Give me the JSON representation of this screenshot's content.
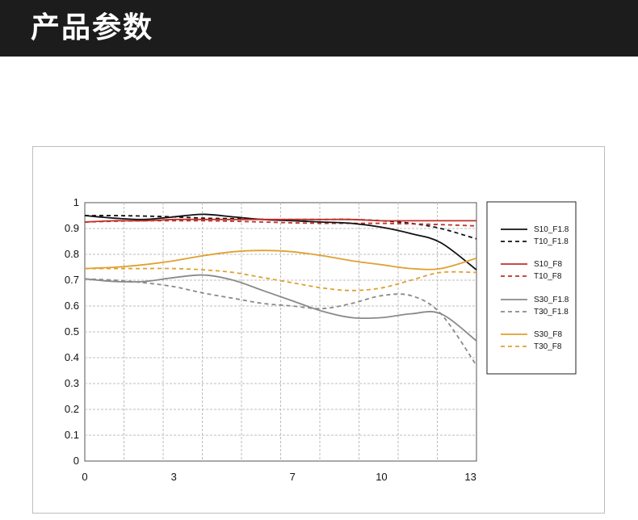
{
  "header": {
    "title": "产品参数"
  },
  "chart_data": {
    "type": "line",
    "title": "",
    "xlabel": "",
    "ylabel": "",
    "xlim": [
      0,
      13.2
    ],
    "ylim": [
      0,
      1
    ],
    "x_ticks": [
      0,
      3,
      7,
      10,
      13
    ],
    "y_ticks": [
      0,
      0.1,
      0.2,
      0.3,
      0.4,
      0.5,
      0.6,
      0.7,
      0.8,
      0.9,
      1
    ],
    "grid": true,
    "legend_position": "right",
    "series": [
      {
        "name": "S10_F1.8",
        "color": "#111111",
        "dashed": false,
        "x": [
          0,
          1,
          2,
          3,
          4,
          5,
          6,
          7,
          8,
          9,
          10,
          11,
          12,
          13.2
        ],
        "y": [
          0.95,
          0.94,
          0.935,
          0.945,
          0.955,
          0.945,
          0.935,
          0.93,
          0.925,
          0.92,
          0.905,
          0.88,
          0.845,
          0.74
        ]
      },
      {
        "name": "T10_F1.8",
        "color": "#111111",
        "dashed": true,
        "x": [
          0,
          1,
          2,
          3,
          4,
          5,
          6,
          7,
          8,
          9,
          10,
          11,
          12,
          13.2
        ],
        "y": [
          0.95,
          0.95,
          0.948,
          0.945,
          0.94,
          0.938,
          0.935,
          0.935,
          0.935,
          0.935,
          0.93,
          0.92,
          0.9,
          0.86
        ]
      },
      {
        "name": "S10_F8",
        "color": "#c0302b",
        "dashed": false,
        "x": [
          0,
          1,
          2,
          3,
          4,
          5,
          6,
          7,
          8,
          9,
          10,
          11,
          12,
          13.2
        ],
        "y": [
          0.925,
          0.93,
          0.93,
          0.935,
          0.935,
          0.935,
          0.935,
          0.935,
          0.935,
          0.935,
          0.93,
          0.93,
          0.93,
          0.93
        ]
      },
      {
        "name": "T10_F8",
        "color": "#c0302b",
        "dashed": true,
        "x": [
          0,
          1,
          2,
          3,
          4,
          5,
          6,
          7,
          8,
          9,
          10,
          11,
          12,
          13.2
        ],
        "y": [
          0.925,
          0.928,
          0.93,
          0.93,
          0.93,
          0.928,
          0.925,
          0.922,
          0.92,
          0.92,
          0.92,
          0.918,
          0.915,
          0.91
        ]
      },
      {
        "name": "S30_F1.8",
        "color": "#8a8a8a",
        "dashed": false,
        "x": [
          0,
          1,
          2,
          3,
          4,
          5,
          6,
          7,
          8,
          9,
          10,
          11,
          12,
          13.2
        ],
        "y": [
          0.705,
          0.695,
          0.695,
          0.71,
          0.72,
          0.7,
          0.66,
          0.62,
          0.58,
          0.555,
          0.555,
          0.57,
          0.57,
          0.465
        ]
      },
      {
        "name": "T30_F1.8",
        "color": "#8a8a8a",
        "dashed": true,
        "x": [
          0,
          1,
          2,
          3,
          4,
          5,
          6,
          7,
          8,
          9,
          10,
          11,
          12,
          13.2
        ],
        "y": [
          0.705,
          0.7,
          0.69,
          0.675,
          0.65,
          0.63,
          0.61,
          0.6,
          0.59,
          0.61,
          0.64,
          0.64,
          0.57,
          0.37
        ]
      },
      {
        "name": "S30_F8",
        "color": "#e0a030",
        "dashed": false,
        "x": [
          0,
          1,
          2,
          3,
          4,
          5,
          6,
          7,
          8,
          9,
          10,
          11,
          12,
          13.2
        ],
        "y": [
          0.745,
          0.75,
          0.76,
          0.775,
          0.795,
          0.81,
          0.815,
          0.81,
          0.795,
          0.775,
          0.76,
          0.745,
          0.745,
          0.785
        ]
      },
      {
        "name": "T30_F8",
        "color": "#e0a030",
        "dashed": true,
        "x": [
          0,
          1,
          2,
          3,
          4,
          5,
          6,
          7,
          8,
          9,
          10,
          11,
          12,
          13.2
        ],
        "y": [
          0.745,
          0.745,
          0.745,
          0.745,
          0.74,
          0.73,
          0.71,
          0.69,
          0.67,
          0.66,
          0.67,
          0.7,
          0.73,
          0.73
        ]
      }
    ]
  }
}
